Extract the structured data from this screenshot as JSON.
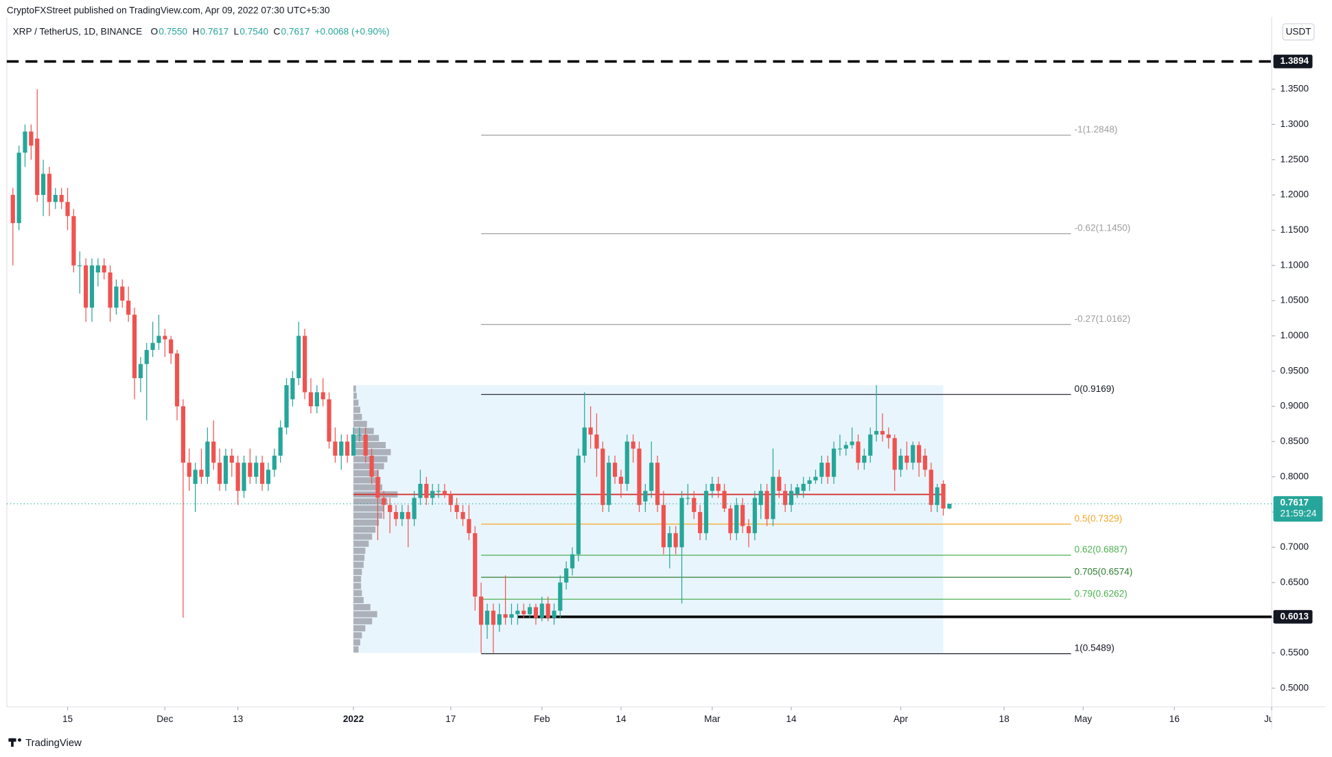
{
  "header": {
    "publisher": "CryptoFXStreet published on TradingView.com, Apr 09, 2022 07:30 UTC+5:30",
    "brand": "TradingView"
  },
  "chart_data": {
    "type": "candlestick",
    "title": "XRP / TetherUS, 1D, BINANCE",
    "ohlc_legend": [
      [
        "O",
        "0.7550"
      ],
      [
        "H",
        "0.7617"
      ],
      [
        "L",
        "0.7540"
      ],
      [
        "C",
        "0.7617"
      ]
    ],
    "change": "+0.0068 (+0.90%)",
    "axis_unit": "USDT",
    "up_color": "#26a69a",
    "down_color": "#ef5350",
    "xlim": [
      "2021-11-05",
      "2022-06-01"
    ],
    "xticks": [
      {
        "value": "2021-11-15",
        "label": "15"
      },
      {
        "value": "2021-12-01",
        "label": "Dec"
      },
      {
        "value": "2021-12-13",
        "label": "13"
      },
      {
        "value": "2022-01-01",
        "label": "2022"
      },
      {
        "value": "2022-01-17",
        "label": "17"
      },
      {
        "value": "2022-02-01",
        "label": "Feb"
      },
      {
        "value": "2022-02-14",
        "label": "14"
      },
      {
        "value": "2022-03-01",
        "label": "Mar"
      },
      {
        "value": "2022-03-14",
        "label": "14"
      },
      {
        "value": "2022-04-01",
        "label": "Apr"
      },
      {
        "value": "2022-04-18",
        "label": "18"
      },
      {
        "value": "2022-05-01",
        "label": "May"
      },
      {
        "value": "2022-05-16",
        "label": "16"
      },
      {
        "value": "2022-06-01",
        "label": "Jun"
      }
    ],
    "ylim": [
      0.4735,
      1.4525
    ],
    "yticks": [
      {
        "value": 0.5,
        "label": "0.5000"
      },
      {
        "value": 0.55,
        "label": "0.5500"
      },
      {
        "value": 0.6,
        "label": "0.6000"
      },
      {
        "value": 0.65,
        "label": "0.6500"
      },
      {
        "value": 0.7,
        "label": "0.7000"
      },
      {
        "value": 0.75,
        "label": "0.7500"
      },
      {
        "value": 0.8,
        "label": "0.8000"
      },
      {
        "value": 0.85,
        "label": "0.8500"
      },
      {
        "value": 0.9,
        "label": "0.9000"
      },
      {
        "value": 0.95,
        "label": "0.9500"
      },
      {
        "value": 1.0,
        "label": "1.0000"
      },
      {
        "value": 1.05,
        "label": "1.0500"
      },
      {
        "value": 1.1,
        "label": "1.1000"
      },
      {
        "value": 1.15,
        "label": "1.1500"
      },
      {
        "value": 1.2,
        "label": "1.2000"
      },
      {
        "value": 1.25,
        "label": "1.2500"
      },
      {
        "value": 1.3,
        "label": "1.3000"
      },
      {
        "value": 1.35,
        "label": "1.3500"
      }
    ],
    "grid": false,
    "x": [
      "2021-11-06",
      "2021-11-07",
      "2021-11-08",
      "2021-11-09",
      "2021-11-10",
      "2021-11-11",
      "2021-11-12",
      "2021-11-13",
      "2021-11-14",
      "2021-11-15",
      "2021-11-16",
      "2021-11-17",
      "2021-11-18",
      "2021-11-19",
      "2021-11-20",
      "2021-11-21",
      "2021-11-22",
      "2021-11-23",
      "2021-11-24",
      "2021-11-25",
      "2021-11-26",
      "2021-11-27",
      "2021-11-28",
      "2021-11-29",
      "2021-11-30",
      "2021-12-01",
      "2021-12-02",
      "2021-12-03",
      "2021-12-04",
      "2021-12-05",
      "2021-12-06",
      "2021-12-07",
      "2021-12-08",
      "2021-12-09",
      "2021-12-10",
      "2021-12-11",
      "2021-12-12",
      "2021-12-13",
      "2021-12-14",
      "2021-12-15",
      "2021-12-16",
      "2021-12-17",
      "2021-12-18",
      "2021-12-19",
      "2021-12-20",
      "2021-12-21",
      "2021-12-22",
      "2021-12-23",
      "2021-12-24",
      "2021-12-25",
      "2021-12-26",
      "2021-12-27",
      "2021-12-28",
      "2021-12-29",
      "2021-12-30",
      "2021-12-31",
      "2022-01-01",
      "2022-01-02",
      "2022-01-03",
      "2022-01-04",
      "2022-01-05",
      "2022-01-06",
      "2022-01-07",
      "2022-01-08",
      "2022-01-09",
      "2022-01-10",
      "2022-01-11",
      "2022-01-12",
      "2022-01-13",
      "2022-01-14",
      "2022-01-15",
      "2022-01-16",
      "2022-01-17",
      "2022-01-18",
      "2022-01-19",
      "2022-01-20",
      "2022-01-21",
      "2022-01-22",
      "2022-01-23",
      "2022-01-24",
      "2022-01-25",
      "2022-01-26",
      "2022-01-27",
      "2022-01-28",
      "2022-01-29",
      "2022-01-30",
      "2022-01-31",
      "2022-02-01",
      "2022-02-02",
      "2022-02-03",
      "2022-02-04",
      "2022-02-05",
      "2022-02-06",
      "2022-02-07",
      "2022-02-08",
      "2022-02-09",
      "2022-02-10",
      "2022-02-11",
      "2022-02-12",
      "2022-02-13",
      "2022-02-14",
      "2022-02-15",
      "2022-02-16",
      "2022-02-17",
      "2022-02-18",
      "2022-02-19",
      "2022-02-20",
      "2022-02-21",
      "2022-02-22",
      "2022-02-23",
      "2022-02-24",
      "2022-02-25",
      "2022-02-26",
      "2022-02-27",
      "2022-02-28",
      "2022-03-01",
      "2022-03-02",
      "2022-03-03",
      "2022-03-04",
      "2022-03-05",
      "2022-03-06",
      "2022-03-07",
      "2022-03-08",
      "2022-03-09",
      "2022-03-10",
      "2022-03-11",
      "2022-03-12",
      "2022-03-13",
      "2022-03-14",
      "2022-03-15",
      "2022-03-16",
      "2022-03-17",
      "2022-03-18",
      "2022-03-19",
      "2022-03-20",
      "2022-03-21",
      "2022-03-22",
      "2022-03-23",
      "2022-03-24",
      "2022-03-25",
      "2022-03-26",
      "2022-03-27",
      "2022-03-28",
      "2022-03-29",
      "2022-03-30",
      "2022-03-31",
      "2022-04-01",
      "2022-04-02",
      "2022-04-03",
      "2022-04-04",
      "2022-04-05",
      "2022-04-06",
      "2022-04-07",
      "2022-04-08",
      "2022-04-09"
    ],
    "ohlc": [
      [
        1.2,
        1.21,
        1.1,
        1.16
      ],
      [
        1.16,
        1.27,
        1.15,
        1.26
      ],
      [
        1.26,
        1.3,
        1.24,
        1.29
      ],
      [
        1.29,
        1.3,
        1.25,
        1.27
      ],
      [
        1.28,
        1.35,
        1.19,
        1.2
      ],
      [
        1.2,
        1.25,
        1.17,
        1.23
      ],
      [
        1.23,
        1.24,
        1.17,
        1.19
      ],
      [
        1.19,
        1.21,
        1.18,
        1.2
      ],
      [
        1.2,
        1.21,
        1.18,
        1.19
      ],
      [
        1.19,
        1.21,
        1.15,
        1.17
      ],
      [
        1.17,
        1.18,
        1.09,
        1.1
      ],
      [
        1.1,
        1.12,
        1.06,
        1.1
      ],
      [
        1.1,
        1.11,
        1.02,
        1.04
      ],
      [
        1.04,
        1.11,
        1.02,
        1.1
      ],
      [
        1.09,
        1.11,
        1.07,
        1.1
      ],
      [
        1.1,
        1.11,
        1.08,
        1.09
      ],
      [
        1.09,
        1.1,
        1.02,
        1.04
      ],
      [
        1.04,
        1.08,
        1.03,
        1.07
      ],
      [
        1.07,
        1.08,
        1.04,
        1.05
      ],
      [
        1.05,
        1.07,
        1.02,
        1.03
      ],
      [
        1.03,
        1.04,
        0.91,
        0.94
      ],
      [
        0.94,
        0.97,
        0.92,
        0.96
      ],
      [
        0.96,
        0.99,
        0.88,
        0.98
      ],
      [
        0.98,
        1.02,
        0.97,
        0.99
      ],
      [
        0.99,
        1.03,
        0.98,
        1.0
      ],
      [
        1.0,
        1.01,
        0.97,
        0.995
      ],
      [
        0.995,
        1.0,
        0.96,
        0.975
      ],
      [
        0.975,
        0.98,
        0.88,
        0.9
      ],
      [
        0.9,
        0.91,
        0.6,
        0.82
      ],
      [
        0.82,
        0.84,
        0.78,
        0.8
      ],
      [
        0.79,
        0.82,
        0.75,
        0.81
      ],
      [
        0.81,
        0.84,
        0.79,
        0.8
      ],
      [
        0.8,
        0.87,
        0.79,
        0.85
      ],
      [
        0.85,
        0.88,
        0.81,
        0.82
      ],
      [
        0.82,
        0.84,
        0.78,
        0.79
      ],
      [
        0.79,
        0.84,
        0.78,
        0.83
      ],
      [
        0.83,
        0.84,
        0.8,
        0.82
      ],
      [
        0.82,
        0.83,
        0.76,
        0.78
      ],
      [
        0.78,
        0.83,
        0.77,
        0.82
      ],
      [
        0.82,
        0.84,
        0.79,
        0.8
      ],
      [
        0.8,
        0.83,
        0.79,
        0.82
      ],
      [
        0.82,
        0.83,
        0.78,
        0.79
      ],
      [
        0.79,
        0.82,
        0.78,
        0.81
      ],
      [
        0.81,
        0.84,
        0.8,
        0.83
      ],
      [
        0.83,
        0.88,
        0.82,
        0.87
      ],
      [
        0.87,
        0.94,
        0.86,
        0.93
      ],
      [
        0.91,
        0.95,
        0.9,
        0.94
      ],
      [
        0.94,
        1.02,
        0.93,
        1.0
      ],
      [
        1.0,
        1.01,
        0.91,
        0.92
      ],
      [
        0.92,
        0.94,
        0.89,
        0.9
      ],
      [
        0.9,
        0.93,
        0.89,
        0.92
      ],
      [
        0.92,
        0.94,
        0.9,
        0.91
      ],
      [
        0.91,
        0.92,
        0.84,
        0.85
      ],
      [
        0.85,
        0.87,
        0.82,
        0.83
      ],
      [
        0.83,
        0.86,
        0.81,
        0.85
      ],
      [
        0.85,
        0.86,
        0.82,
        0.83
      ],
      [
        0.83,
        0.87,
        0.83,
        0.86
      ],
      [
        0.86,
        0.87,
        0.85,
        0.86
      ],
      [
        0.86,
        0.87,
        0.82,
        0.83
      ],
      [
        0.83,
        0.84,
        0.79,
        0.8
      ],
      [
        0.8,
        0.81,
        0.71,
        0.77
      ],
      [
        0.77,
        0.78,
        0.74,
        0.76
      ],
      [
        0.76,
        0.77,
        0.72,
        0.75
      ],
      [
        0.75,
        0.76,
        0.73,
        0.74
      ],
      [
        0.74,
        0.76,
        0.73,
        0.75
      ],
      [
        0.75,
        0.76,
        0.7,
        0.74
      ],
      [
        0.74,
        0.78,
        0.73,
        0.77
      ],
      [
        0.77,
        0.81,
        0.76,
        0.79
      ],
      [
        0.79,
        0.8,
        0.76,
        0.77
      ],
      [
        0.77,
        0.79,
        0.76,
        0.78
      ],
      [
        0.78,
        0.79,
        0.77,
        0.78
      ],
      [
        0.78,
        0.79,
        0.77,
        0.775
      ],
      [
        0.775,
        0.78,
        0.75,
        0.76
      ],
      [
        0.76,
        0.77,
        0.74,
        0.75
      ],
      [
        0.75,
        0.76,
        0.73,
        0.74
      ],
      [
        0.74,
        0.76,
        0.71,
        0.72
      ],
      [
        0.72,
        0.73,
        0.61,
        0.63
      ],
      [
        0.63,
        0.65,
        0.55,
        0.59
      ],
      [
        0.59,
        0.62,
        0.57,
        0.61
      ],
      [
        0.61,
        0.62,
        0.55,
        0.59
      ],
      [
        0.59,
        0.62,
        0.58,
        0.605
      ],
      [
        0.605,
        0.66,
        0.59,
        0.6
      ],
      [
        0.6,
        0.62,
        0.59,
        0.605
      ],
      [
        0.605,
        0.62,
        0.59,
        0.61
      ],
      [
        0.61,
        0.62,
        0.6,
        0.605
      ],
      [
        0.605,
        0.62,
        0.6,
        0.615
      ],
      [
        0.615,
        0.62,
        0.59,
        0.6
      ],
      [
        0.6,
        0.63,
        0.595,
        0.62
      ],
      [
        0.62,
        0.63,
        0.595,
        0.6
      ],
      [
        0.6,
        0.62,
        0.59,
        0.61
      ],
      [
        0.61,
        0.66,
        0.6,
        0.65
      ],
      [
        0.65,
        0.68,
        0.64,
        0.67
      ],
      [
        0.67,
        0.7,
        0.66,
        0.69
      ],
      [
        0.69,
        0.84,
        0.68,
        0.83
      ],
      [
        0.83,
        0.92,
        0.82,
        0.87
      ],
      [
        0.87,
        0.9,
        0.84,
        0.86
      ],
      [
        0.86,
        0.89,
        0.8,
        0.84
      ],
      [
        0.84,
        0.85,
        0.75,
        0.76
      ],
      [
        0.76,
        0.83,
        0.75,
        0.82
      ],
      [
        0.82,
        0.83,
        0.79,
        0.8
      ],
      [
        0.8,
        0.81,
        0.77,
        0.79
      ],
      [
        0.79,
        0.86,
        0.78,
        0.85
      ],
      [
        0.85,
        0.86,
        0.82,
        0.84
      ],
      [
        0.84,
        0.85,
        0.75,
        0.76
      ],
      [
        0.765,
        0.79,
        0.75,
        0.78
      ],
      [
        0.78,
        0.85,
        0.77,
        0.82
      ],
      [
        0.82,
        0.83,
        0.75,
        0.76
      ],
      [
        0.76,
        0.78,
        0.69,
        0.7
      ],
      [
        0.7,
        0.73,
        0.67,
        0.72
      ],
      [
        0.72,
        0.73,
        0.69,
        0.7
      ],
      [
        0.7,
        0.78,
        0.62,
        0.77
      ],
      [
        0.77,
        0.79,
        0.76,
        0.77
      ],
      [
        0.77,
        0.78,
        0.74,
        0.75
      ],
      [
        0.75,
        0.76,
        0.71,
        0.72
      ],
      [
        0.72,
        0.79,
        0.71,
        0.78
      ],
      [
        0.78,
        0.8,
        0.77,
        0.79
      ],
      [
        0.79,
        0.8,
        0.77,
        0.78
      ],
      [
        0.78,
        0.79,
        0.75,
        0.755
      ],
      [
        0.755,
        0.76,
        0.71,
        0.72
      ],
      [
        0.72,
        0.77,
        0.71,
        0.76
      ],
      [
        0.76,
        0.77,
        0.72,
        0.73
      ],
      [
        0.73,
        0.74,
        0.7,
        0.72
      ],
      [
        0.72,
        0.78,
        0.71,
        0.77
      ],
      [
        0.76,
        0.79,
        0.74,
        0.78
      ],
      [
        0.78,
        0.79,
        0.73,
        0.74
      ],
      [
        0.74,
        0.84,
        0.73,
        0.8
      ],
      [
        0.8,
        0.81,
        0.77,
        0.78
      ],
      [
        0.78,
        0.79,
        0.75,
        0.76
      ],
      [
        0.76,
        0.79,
        0.75,
        0.78
      ],
      [
        0.775,
        0.79,
        0.77,
        0.785
      ],
      [
        0.78,
        0.8,
        0.77,
        0.79
      ],
      [
        0.79,
        0.8,
        0.78,
        0.795
      ],
      [
        0.795,
        0.81,
        0.79,
        0.8
      ],
      [
        0.8,
        0.83,
        0.79,
        0.82
      ],
      [
        0.82,
        0.83,
        0.79,
        0.8
      ],
      [
        0.8,
        0.85,
        0.79,
        0.84
      ],
      [
        0.84,
        0.86,
        0.83,
        0.84
      ],
      [
        0.84,
        0.85,
        0.83,
        0.845
      ],
      [
        0.845,
        0.87,
        0.84,
        0.85
      ],
      [
        0.85,
        0.86,
        0.81,
        0.82
      ],
      [
        0.82,
        0.84,
        0.81,
        0.83
      ],
      [
        0.83,
        0.87,
        0.82,
        0.86
      ],
      [
        0.86,
        0.93,
        0.85,
        0.865
      ],
      [
        0.865,
        0.89,
        0.85,
        0.86
      ],
      [
        0.86,
        0.87,
        0.84,
        0.855
      ],
      [
        0.855,
        0.86,
        0.78,
        0.81
      ],
      [
        0.81,
        0.84,
        0.8,
        0.83
      ],
      [
        0.83,
        0.85,
        0.81,
        0.82
      ],
      [
        0.82,
        0.85,
        0.81,
        0.845
      ],
      [
        0.845,
        0.85,
        0.8,
        0.82
      ],
      [
        0.83,
        0.84,
        0.8,
        0.81
      ],
      [
        0.81,
        0.82,
        0.75,
        0.76
      ],
      [
        0.76,
        0.79,
        0.75,
        0.785
      ],
      [
        0.79,
        0.795,
        0.745,
        0.755
      ],
      [
        0.755,
        0.7617,
        0.754,
        0.7617
      ]
    ],
    "volume_profile": {
      "from": "2022-01-01",
      "to": "2022-04-08",
      "fill": "#e3f2fd",
      "bar_color": "#9598a1",
      "poc_color": "#d32f2f",
      "prices": [
        0.55,
        0.56,
        0.57,
        0.58,
        0.59,
        0.6,
        0.61,
        0.62,
        0.63,
        0.64,
        0.65,
        0.66,
        0.67,
        0.68,
        0.69,
        0.7,
        0.71,
        0.72,
        0.73,
        0.74,
        0.75,
        0.76,
        0.77,
        0.78,
        0.79,
        0.8,
        0.81,
        0.82,
        0.83,
        0.84,
        0.85,
        0.86,
        0.87,
        0.88,
        0.89,
        0.9,
        0.91,
        0.92
      ],
      "volumes": [
        6,
        8,
        10,
        14,
        22,
        28,
        20,
        12,
        10,
        9,
        9,
        10,
        12,
        13,
        14,
        18,
        22,
        26,
        30,
        34,
        36,
        40,
        52,
        34,
        32,
        30,
        36,
        40,
        44,
        38,
        30,
        24,
        16,
        10,
        8,
        6,
        4,
        3
      ]
    },
    "fib_levels": {
      "from": "2022-01-22",
      "to": "2022-04-29",
      "levels": [
        {
          "label": "-1(1.2848)",
          "value": 1.2848,
          "color": "#9e9e9e"
        },
        {
          "label": "-0.62(1.1450)",
          "value": 1.145,
          "color": "#9e9e9e"
        },
        {
          "label": "-0.27(1.0162)",
          "value": 1.0162,
          "color": "#9e9e9e"
        },
        {
          "label": "0(0.9169)",
          "value": 0.9169,
          "color": "#131722"
        },
        {
          "label": "0.5(0.7329)",
          "value": 0.7329,
          "color": "#f5a623"
        },
        {
          "label": "0.62(0.6887)",
          "value": 0.6887,
          "color": "#4caf50"
        },
        {
          "label": "0.705(0.6574)",
          "value": 0.6574,
          "color": "#2e7d32"
        },
        {
          "label": "0.79(0.6262)",
          "value": 0.6262,
          "color": "#4caf50"
        },
        {
          "label": "1(0.5489)",
          "value": 0.5489,
          "color": "#131722"
        }
      ]
    },
    "hlines": [
      {
        "value": 1.3894,
        "label": "1.3894",
        "from": "2021-11-05",
        "style": "dashed"
      },
      {
        "value": 0.6013,
        "label": "0.6013",
        "from": "2022-01-28",
        "style": "solid"
      }
    ],
    "last_price": {
      "value": 0.7617,
      "label": "0.7617",
      "countdown": "21:59:24",
      "color": "#26a69a"
    }
  }
}
